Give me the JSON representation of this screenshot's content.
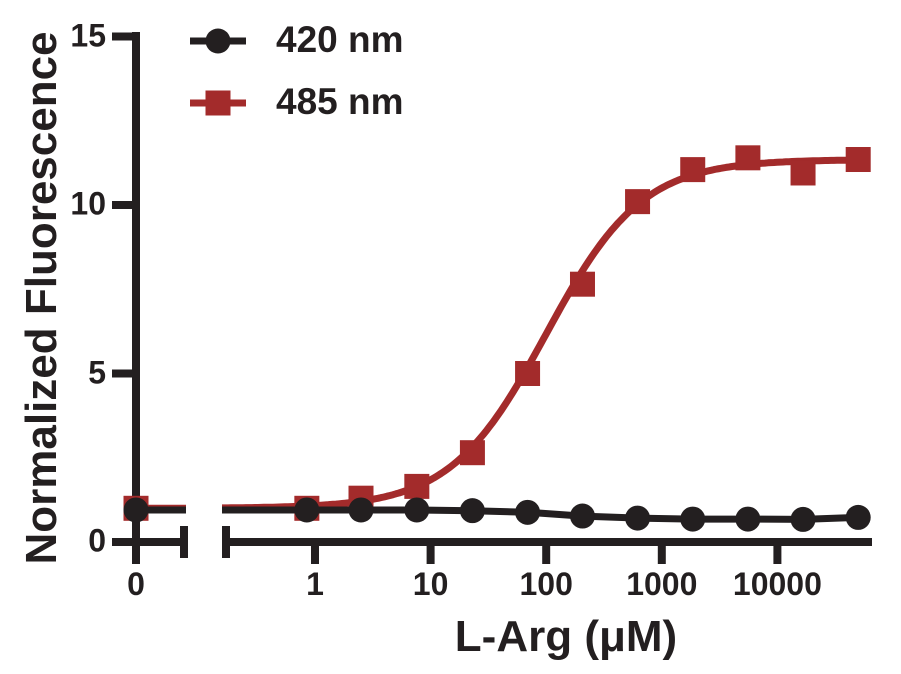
{
  "colors": {
    "foreground": "#231F20",
    "series_420": "#231F20",
    "series_485": "#A32B2B",
    "background": "#FFFFFF"
  },
  "legend": {
    "items": [
      {
        "label": "420 nm",
        "marker": "circle",
        "color": "#231F20"
      },
      {
        "label": "485 nm",
        "marker": "square",
        "color": "#A32B2B"
      }
    ]
  },
  "axes": {
    "x": {
      "label": "L-Arg (μM)",
      "scale": "log10-with-zero-break",
      "tick_labels": [
        "0",
        "1",
        "10",
        "100",
        "1000",
        "10000"
      ],
      "tick_values": [
        0,
        1,
        10,
        100,
        1000,
        10000
      ]
    },
    "y": {
      "label": "Normalized Fluorescence",
      "tick_labels": [
        "0",
        "5",
        "10",
        "15"
      ],
      "tick_values": [
        0,
        5,
        10,
        15
      ],
      "range": [
        0,
        15
      ]
    }
  },
  "chart_data": {
    "type": "scatter",
    "title": "",
    "xlabel": "L-Arg (μM)",
    "ylabel": "Normalized Fluorescence",
    "ylim": [
      0,
      15
    ],
    "x_axis_break_after_zero": true,
    "x": [
      0,
      0.85,
      2.5,
      7.6,
      23,
      69,
      206,
      617,
      1852,
      5556,
      16667,
      50000
    ],
    "series": [
      {
        "name": "485 nm",
        "marker": "square",
        "color": "#A32B2B",
        "values": [
          1.0,
          1.0,
          1.3,
          1.65,
          2.65,
          5.0,
          7.65,
          10.1,
          11.05,
          11.4,
          10.95,
          11.35
        ],
        "fit": {
          "model": "hill",
          "bottom": 1.0,
          "top": 11.35,
          "ec50": 100,
          "slope": 1.05
        }
      },
      {
        "name": "420 nm",
        "marker": "circle",
        "color": "#231F20",
        "values": [
          0.95,
          0.95,
          0.95,
          0.95,
          0.93,
          0.88,
          0.77,
          0.71,
          0.68,
          0.68,
          0.67,
          0.73
        ],
        "fit": {
          "model": "connected-line"
        }
      }
    ],
    "legend_position": "top-left-inside",
    "grid": false
  }
}
